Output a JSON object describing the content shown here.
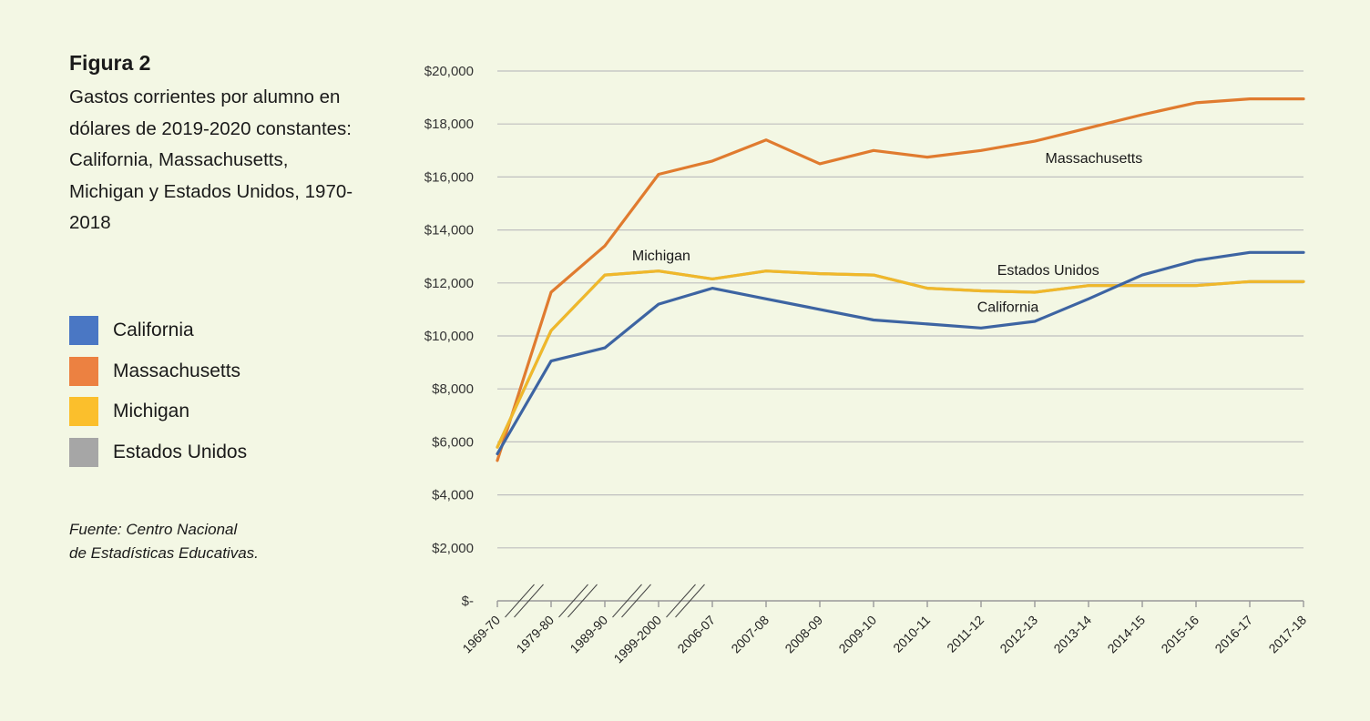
{
  "figure": {
    "label": "Figura 2",
    "description": "Gastos corrientes por alumno en dólares de 2019-2020 constantes: California, Massachusetts, Michigan y Estados Unidos, 1970-2018",
    "source_line1": "Fuente: Centro Nacional",
    "source_line2": "de Estadísticas Educativas."
  },
  "colors": {
    "California": "#3d64a2",
    "Massachusetts": "#e07b2f",
    "Michigan": "#f0b82a",
    "Estados Unidos": "#a6a6a6",
    "legend_California": "#4a77c4",
    "legend_Massachusetts": "#ec8141",
    "legend_Michigan": "#fbbf2c",
    "grid": "#bfbfbf",
    "axis": "#999999"
  },
  "legend": [
    {
      "key": "California",
      "label": "California"
    },
    {
      "key": "Massachusetts",
      "label": "Massachusetts"
    },
    {
      "key": "Michigan",
      "label": "Michigan"
    },
    {
      "key": "Estados Unidos",
      "label": "Estados Unidos"
    }
  ],
  "chart_data": {
    "type": "line",
    "x": [
      "1969-70",
      "1979-80",
      "1989-90",
      "1999-2000",
      "2006-07",
      "2007-08",
      "2008-09",
      "2009-10",
      "2010-11",
      "2011-12",
      "2012-13",
      "2013-14",
      "2014-15",
      "2015-16",
      "2016-17",
      "2017-18"
    ],
    "x_breaks_after_index": [
      0,
      1,
      2,
      3
    ],
    "ylim": [
      0,
      20000
    ],
    "yticks": [
      0,
      2000,
      4000,
      6000,
      8000,
      10000,
      12000,
      14000,
      16000,
      18000,
      20000
    ],
    "ytick_labels": [
      "$-",
      "$2,000",
      "$4,000",
      "$6,000",
      "$8,000",
      "$10,000",
      "$12,000",
      "$14,000",
      "$16,000",
      "$18,000",
      "$20,000"
    ],
    "grid": true,
    "series": [
      {
        "name": "Massachusetts",
        "values": [
          5300,
          11650,
          13400,
          16100,
          16600,
          17400,
          16500,
          17000,
          16750,
          17000,
          17350,
          17850,
          18350,
          18800,
          18950,
          18950
        ]
      },
      {
        "name": "Estados Unidos",
        "values": [
          5800,
          10200,
          12300,
          12450,
          12150,
          12450,
          12350,
          12300,
          11800,
          11700,
          11650,
          11900,
          11900,
          11900,
          12050,
          12050
        ]
      },
      {
        "name": "Michigan",
        "values": [
          5800,
          10200,
          12300,
          12450,
          12150,
          12450,
          12350,
          12300,
          11800,
          11700,
          11650,
          11900,
          11900,
          11900,
          12050,
          12050
        ]
      },
      {
        "name": "California",
        "values": [
          5550,
          9050,
          9550,
          11200,
          11800,
          11400,
          11000,
          10600,
          10450,
          10300,
          10550,
          11400,
          12300,
          12850,
          13150,
          13150
        ]
      }
    ],
    "annotations": [
      {
        "text": "Massachusetts",
        "series": "Massachusetts"
      },
      {
        "text": "Michigan",
        "series": "Michigan"
      },
      {
        "text": "Estados Unidos",
        "series": "Estados Unidos"
      },
      {
        "text": "California",
        "series": "California"
      }
    ]
  }
}
